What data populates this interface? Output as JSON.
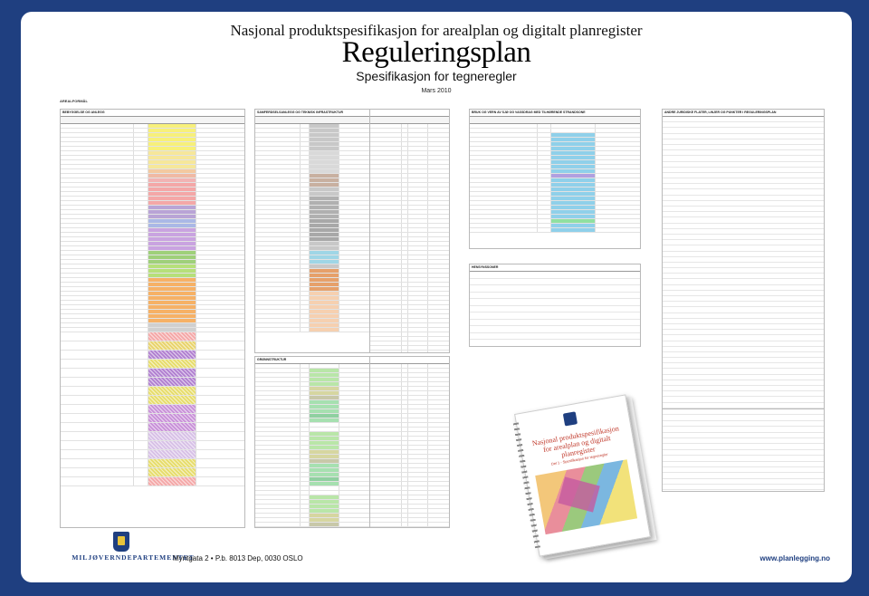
{
  "header": {
    "subtitle": "Nasjonal produktspesifikasjon for arealplan og digitalt planregister",
    "title": "Reguleringsplan",
    "spec": "Spesifikasjon for tegneregler",
    "date": "Mars 2010"
  },
  "section_label": "AREALFORMÅL",
  "tables": [
    {
      "title": "BEBYGGELSE OG ANLEGG",
      "palette": [
        "#f7f07a",
        "#f7f07a",
        "#f7f07a",
        "#f7f07a",
        "#f7f07a",
        "#f7f07a",
        "#f6e79a",
        "#f6e79a",
        "#f6e79a",
        "#f6e79a",
        "#f3c9a0",
        "#f0b9a4",
        "#f2b3b3",
        "#f4a7a7",
        "#f4a7a7",
        "#f4a7a7",
        "#f4a7a7",
        "#f4a7a7",
        "#b9a4d6",
        "#b9a4d6",
        "#b9a4d6",
        "#aab8e6",
        "#aab8e6",
        "#c9a3e0",
        "#c9a3e0",
        "#c9a3e0",
        "#c9a3e0",
        "#c9a3e0",
        "#9fd07a",
        "#9fd07a",
        "#9fd07a",
        "#b6e07a",
        "#b6e07a",
        "#b6e07a",
        "#f6b166",
        "#f6b166",
        "#f6b166",
        "#f6b166",
        "#f6b166",
        "#f6b166",
        "#f6b166",
        "#f6b166",
        "#f6b166",
        "#f6b166",
        "#d0d0d0",
        "#d0d0d0",
        "#f4a7a7",
        "#e8d36a",
        "#b07fd0",
        "#e6dc6a",
        "#b07fd0",
        "#b07fd0",
        "#e6dc6a",
        "#e6dc6a",
        "#c890d8",
        "#c890d8",
        "#c890d8",
        "#d7c0e6",
        "#d7c0e6",
        "#d7c0e6",
        "#e6dc6a",
        "#e6dc6a",
        "#f4a7a7"
      ]
    },
    {
      "title": "SAMFERDSELSANLEGG OG TEKNISK INFRASTRUKTUR",
      "palette": [
        "#c8c8c8",
        "#c8c8c8",
        "#c8c8c8",
        "#c8c8c8",
        "#c8c8c8",
        "#c8c8c8",
        "#d9d9d9",
        "#d9d9d9",
        "#d9d9d9",
        "#d9d9d9",
        "#d9d9d9",
        "#c8b0a0",
        "#c8b0a0",
        "#c8b0a0",
        "#c8c8c8",
        "#c8c8c8",
        "#b0b0b0",
        "#b0b0b0",
        "#b0b0b0",
        "#b0b0b0",
        "#b0b0b0",
        "#a8a8a8",
        "#a8a8a8",
        "#a8a8a8",
        "#a8a8a8",
        "#a8a8a8",
        "#c8c8c8",
        "#c8c8c8",
        "#9fd6e6",
        "#9fd6e6",
        "#9fd6e6",
        "#c8c8c8",
        "#e6a06a",
        "#e6a06a",
        "#e6a06a",
        "#e6a06a",
        "#e6a06a",
        "#f6d0b0",
        "#f6d0b0",
        "#f6d0b0",
        "#f6d0b0",
        "#f6d0b0",
        "#f6d0b0",
        "#f6d0b0",
        "#f6d0b0",
        "#f6d0b0"
      ]
    },
    {
      "title": "BRUK OG VERN AV SJØ OG VASSDRAG MED TILHØRENDE STRANDSONE",
      "palette": [
        "#ffffff",
        "#ffffff",
        "#8fd0ea",
        "#8fd0ea",
        "#8fd0ea",
        "#8fd0ea",
        "#8fd0ea",
        "#8fd0ea",
        "#8fd0ea",
        "#8fd0ea",
        "#8fd0ea",
        "#b0a0e0",
        "#8fd0ea",
        "#8fd0ea",
        "#8fd0ea",
        "#8fd0ea",
        "#8fd0ea",
        "#8fd0ea",
        "#8fd0ea",
        "#8fd0ea",
        "#8fd0ea",
        "#8fe0a0",
        "#8fd0ea",
        "#8fd0ea"
      ]
    }
  ],
  "greens": {
    "title_a": "GRØNNSTRUKTUR",
    "title_b": "FORSVARET",
    "title_c": "LANDBRUKS-, NATUR- OG FRILUFTSFORMÅL SAMT REINDRIFT"
  },
  "hensyn": {
    "title": "HENSYNSSONER"
  },
  "right": {
    "title": "ANDRE JURIDISKE FLATER, LINJER OG PUNKTER I REGULERINGSPLAN"
  },
  "booklet": {
    "title": "Nasjonal produktspesifikasjon for arealplan og digitalt planregister",
    "subtitle": "Del 1 - Spesifikasjon for tegneregler"
  },
  "footer": {
    "ministry": "MILJØVERNDEPARTEMENTET",
    "address": "Myntgata 2  •  P.b. 8013 Dep, 0030 OSLO",
    "web": "www.planlegging.no"
  }
}
